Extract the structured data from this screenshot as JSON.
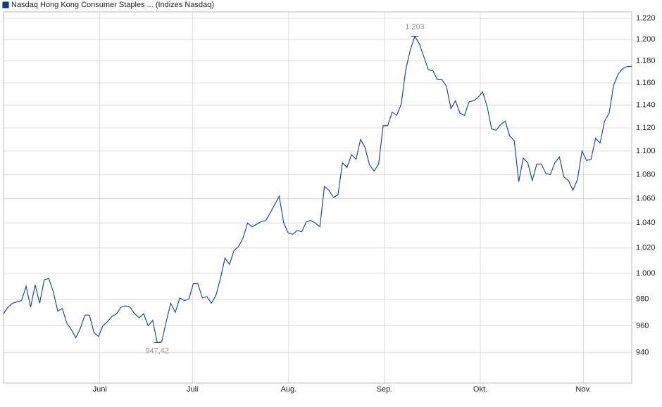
{
  "chart_data": {
    "type": "line",
    "yscale": "log",
    "grid": true,
    "legend": "top-left",
    "xlim": [
      0,
      139
    ],
    "ylim": [
      918,
      1226
    ],
    "xticks": [
      {
        "value": 21.3,
        "label": "Juni"
      },
      {
        "value": 41.8,
        "label": "Juli"
      },
      {
        "value": 63.1,
        "label": "Aug."
      },
      {
        "value": 84.3,
        "label": "Sep."
      },
      {
        "value": 105.5,
        "label": "Okt."
      },
      {
        "value": 128.3,
        "label": "Nov."
      }
    ],
    "yticks": [
      940,
      960,
      980,
      {
        "value": 1000,
        "label": "1.000"
      },
      {
        "value": 1020,
        "label": "1.020"
      },
      {
        "value": 1040,
        "label": "1.040"
      },
      {
        "value": 1060,
        "label": "1.060"
      },
      {
        "value": 1080,
        "label": "1.080"
      },
      {
        "value": 1100,
        "label": "1.100"
      },
      {
        "value": 1120,
        "label": "1.120"
      },
      {
        "value": 1140,
        "label": "1.140"
      },
      {
        "value": 1160,
        "label": "1.160"
      },
      {
        "value": 1180,
        "label": "1.180"
      },
      {
        "value": 1200,
        "label": "1.200"
      },
      {
        "value": 1220,
        "label": "1.220"
      }
    ],
    "series": [
      {
        "name": "Nasdaq Hong Kong Consumer Staples ... (Indizes Nasdaq)",
        "color": "#0b3f91",
        "x": [
          0,
          1,
          2,
          3,
          4,
          5,
          6,
          7,
          8,
          9,
          10,
          11,
          12,
          13,
          14,
          15,
          16,
          17,
          18,
          19,
          20,
          21,
          22,
          23,
          24,
          25,
          26,
          27,
          28,
          29,
          30,
          31,
          32,
          33,
          34,
          35,
          36,
          37,
          38,
          39,
          40,
          41,
          42,
          43,
          44,
          45,
          46,
          47,
          48,
          49,
          50,
          51,
          52,
          53,
          54,
          55,
          56,
          57,
          58,
          59,
          60,
          61,
          62,
          63,
          64,
          65,
          66,
          67,
          68,
          69,
          70,
          71,
          72,
          73,
          74,
          75,
          76,
          77,
          78,
          79,
          80,
          81,
          82,
          83,
          84,
          85,
          86,
          87,
          88,
          89,
          90,
          91,
          92,
          93,
          94,
          95,
          96,
          97,
          98,
          99,
          100,
          101,
          102,
          103,
          104,
          105,
          106,
          107,
          108,
          109,
          110,
          111,
          112,
          113,
          114,
          115,
          116,
          117,
          118,
          119,
          120,
          121,
          122,
          123,
          124,
          125,
          126,
          127,
          128,
          129,
          130,
          131,
          132,
          133,
          134,
          135,
          136,
          137,
          138,
          139
        ],
        "values": [
          969,
          974,
          977,
          978,
          979,
          990,
          974,
          991,
          977,
          995,
          996,
          986,
          971,
          973,
          962,
          957,
          951,
          958,
          968,
          968,
          955,
          952,
          960,
          963,
          967,
          969,
          974,
          975,
          974,
          969,
          966,
          969,
          960,
          964,
          947.42,
          948,
          963,
          977,
          970,
          981,
          979,
          980,
          992,
          992,
          981,
          982,
          977,
          983,
          996,
          1012,
          1007,
          1018,
          1021,
          1028,
          1040,
          1037,
          1039,
          1041,
          1042,
          1048,
          1055,
          1062,
          1040,
          1032,
          1031,
          1034,
          1033,
          1041,
          1042,
          1040,
          1037,
          1070,
          1067,
          1061,
          1063,
          1090,
          1086,
          1097,
          1093,
          1110,
          1103,
          1088,
          1083,
          1089,
          1122,
          1122,
          1134,
          1131,
          1141,
          1172,
          1190,
          1203,
          1196,
          1184,
          1172,
          1171,
          1163,
          1163,
          1157,
          1137,
          1144,
          1133,
          1131,
          1143,
          1144,
          1147,
          1152,
          1139,
          1119,
          1118,
          1123,
          1126,
          1113,
          1109,
          1074,
          1094,
          1090,
          1075,
          1089,
          1089,
          1081,
          1080,
          1090,
          1095,
          1078,
          1075,
          1067,
          1076,
          1100,
          1092,
          1093,
          1111,
          1107,
          1126,
          1133,
          1158,
          1168,
          1173,
          1175,
          1175
        ]
      }
    ],
    "annotations": [
      {
        "x": 91,
        "value": 1203,
        "label": "1.203"
      },
      {
        "x": 34,
        "value": 947.42,
        "label": "947,42"
      }
    ]
  }
}
